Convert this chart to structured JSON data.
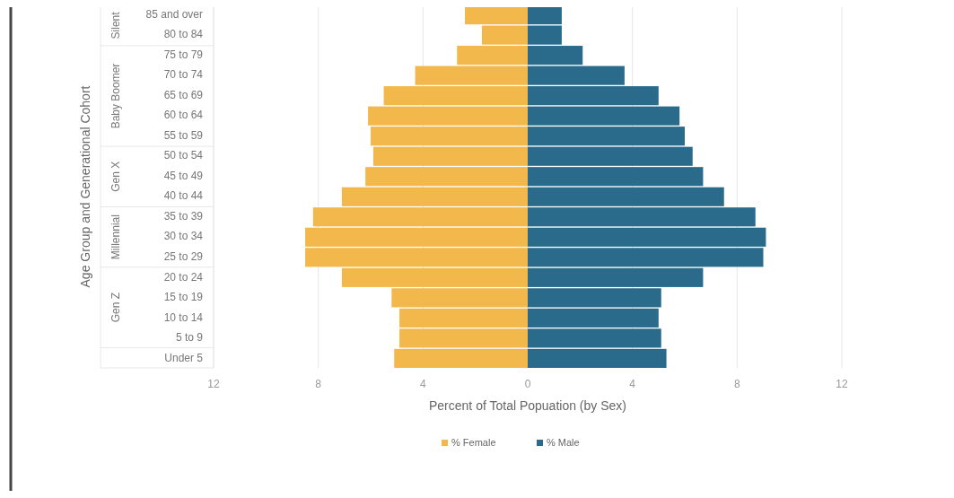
{
  "chart_data": {
    "type": "bar",
    "orientation": "horizontal",
    "stacked": true,
    "xlabel": "Percent of Total Popuation (by Sex)",
    "ylabel": "Age Group and Generational Cohort",
    "categories": [
      "85 and over",
      "80 to 84",
      "75 to 79",
      "70 to 74",
      "65 to 69",
      "60 to 64",
      "55 to 59",
      "50 to 54",
      "45 to 49",
      "40 to 44",
      "35 to 39",
      "30 to 34",
      "25 to 29",
      "20 to 24",
      "15 to 19",
      "10 to 14",
      "5 to 9",
      "Under 5"
    ],
    "series": [
      {
        "name": "% Female",
        "color": "#f2b84b",
        "values": [
          -2.4,
          -1.75,
          -2.7,
          -4.3,
          -5.5,
          -6.1,
          -6.0,
          -5.9,
          -6.2,
          -7.1,
          -8.2,
          -8.5,
          -8.5,
          -7.1,
          -5.2,
          -4.9,
          -4.9,
          -5.1
        ]
      },
      {
        "name": "% Male",
        "color": "#2a6b8c",
        "values": [
          1.3,
          1.3,
          2.1,
          3.7,
          5.0,
          5.8,
          6.0,
          6.3,
          6.7,
          7.5,
          8.7,
          9.1,
          9.0,
          6.7,
          5.1,
          5.0,
          5.1,
          5.3
        ]
      }
    ],
    "xlim": [
      -12,
      12
    ],
    "xticks": [
      {
        "value": -12,
        "label": "12"
      },
      {
        "value": -8,
        "label": "8"
      },
      {
        "value": -4,
        "label": "4"
      },
      0,
      4,
      8,
      12
    ],
    "grid": "x",
    "legend": "bottom",
    "annotations": [
      "Silent",
      "Baby Boomer",
      "Gen X",
      "Millennial",
      "Gen Z"
    ]
  }
}
